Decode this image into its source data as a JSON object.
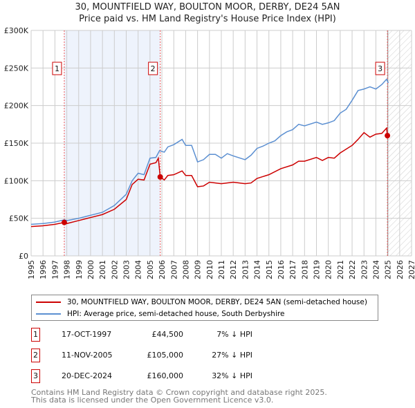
{
  "chart_data": {
    "type": "line",
    "title": "30, MOUNTFIELD WAY, BOULTON MOOR, DERBY, DE24 5AN",
    "subtitle": "Price paid vs. HM Land Registry's House Price Index (HPI)",
    "xlim": [
      1995,
      2027
    ],
    "ylim": [
      0,
      300000
    ],
    "x_ticks": [
      "1995",
      "1996",
      "1997",
      "1998",
      "1999",
      "2000",
      "2001",
      "2002",
      "2003",
      "2004",
      "2005",
      "2006",
      "2007",
      "2008",
      "2009",
      "2010",
      "2011",
      "2012",
      "2013",
      "2014",
      "2015",
      "2016",
      "2017",
      "2018",
      "2019",
      "2020",
      "2021",
      "2022",
      "2023",
      "2024",
      "2025",
      "2026",
      "2027"
    ],
    "y_ticks": [
      {
        "v": 0,
        "label": "£0"
      },
      {
        "v": 50000,
        "label": "£50K"
      },
      {
        "v": 100000,
        "label": "£100K"
      },
      {
        "v": 150000,
        "label": "£150K"
      },
      {
        "v": 200000,
        "label": "£200K"
      },
      {
        "v": 250000,
        "label": "£250K"
      },
      {
        "v": 300000,
        "label": "£300K"
      }
    ],
    "grid": true,
    "shaded_range": [
      1997.79,
      2005.86
    ],
    "forecast_hatch_from": 2025.0,
    "series": [
      {
        "name": "30, MOUNTFIELD WAY, BOULTON MOOR, DERBY, DE24 5AN (semi-detached house)",
        "color": "#cc0000",
        "x": [
          1995,
          1996,
          1997,
          1997.79,
          1998,
          1999,
          2000,
          2001,
          2002,
          2003,
          2003.5,
          2004,
          2004.5,
          2005,
          2005.5,
          2005.7,
          2005.86,
          2006.2,
          2006.5,
          2007,
          2007.7,
          2008,
          2008.5,
          2009,
          2009.5,
          2010,
          2011,
          2012,
          2013,
          2013.5,
          2014,
          2015,
          2016,
          2017,
          2017.5,
          2018,
          2019,
          2019.5,
          2020,
          2020.5,
          2021,
          2022,
          2022.5,
          2023,
          2023.5,
          2024,
          2024.5,
          2024.9,
          2024.97,
          2025.05
        ],
        "y": [
          39000,
          40000,
          42000,
          44500,
          43000,
          47000,
          51000,
          55000,
          62000,
          75000,
          95000,
          102000,
          101000,
          122000,
          124000,
          130000,
          105000,
          101000,
          107000,
          108000,
          113000,
          107000,
          107000,
          92000,
          93000,
          98000,
          96000,
          98000,
          96000,
          97000,
          103000,
          108000,
          116000,
          121000,
          126000,
          126000,
          131000,
          127000,
          131000,
          130000,
          137000,
          147000,
          155000,
          164000,
          158000,
          162000,
          163000,
          170000,
          160000,
          160000
        ]
      },
      {
        "name": "HPI: Average price, semi-detached house, South Derbyshire",
        "color": "#5b8fd1",
        "x": [
          1995,
          1996,
          1997,
          1997.8,
          1998,
          1999,
          2000,
          2001,
          2002,
          2003,
          2003.5,
          2004,
          2004.5,
          2005,
          2005.5,
          2005.8,
          2006.2,
          2006.5,
          2007,
          2007.7,
          2008,
          2008.5,
          2009,
          2009.5,
          2010,
          2010.5,
          2011,
          2011.5,
          2012,
          2013,
          2013.5,
          2014,
          2014.5,
          2015,
          2015.5,
          2016,
          2016.5,
          2017,
          2017.5,
          2018,
          2019,
          2019.5,
          2020,
          2020.5,
          2021,
          2021.5,
          2022,
          2022.5,
          2023,
          2023.5,
          2024,
          2024.5,
          2024.9,
          2025.05
        ],
        "y": [
          42000,
          43000,
          45000,
          48000,
          47000,
          50000,
          54000,
          58000,
          67000,
          82000,
          100000,
          110000,
          108000,
          130000,
          131000,
          140000,
          138000,
          145000,
          148000,
          155000,
          147000,
          147000,
          125000,
          128000,
          135000,
          135000,
          130000,
          136000,
          133000,
          128000,
          134000,
          143000,
          146000,
          150000,
          153000,
          160000,
          165000,
          168000,
          175000,
          173000,
          178000,
          175000,
          177000,
          180000,
          190000,
          195000,
          207000,
          220000,
          222000,
          225000,
          222000,
          228000,
          235000,
          230000
        ]
      }
    ],
    "sales": [
      {
        "num": "1",
        "x": 1997.79,
        "price": 44500,
        "date": "17-OCT-1997",
        "price_label": "£44,500",
        "hpi": "7% ↓ HPI"
      },
      {
        "num": "2",
        "x": 2005.86,
        "price": 105000,
        "date": "11-NOV-2005",
        "price_label": "£105,000",
        "hpi": "27% ↓ HPI"
      },
      {
        "num": "3",
        "x": 2024.97,
        "price": 160000,
        "date": "20-DEC-2024",
        "price_label": "£160,000",
        "hpi": "32% ↓ HPI"
      }
    ],
    "legend_placement": "below"
  },
  "footer": {
    "line1": "Contains HM Land Registry data © Crown copyright and database right 2025.",
    "line2": "This data is licensed under the Open Government Licence v3.0."
  }
}
